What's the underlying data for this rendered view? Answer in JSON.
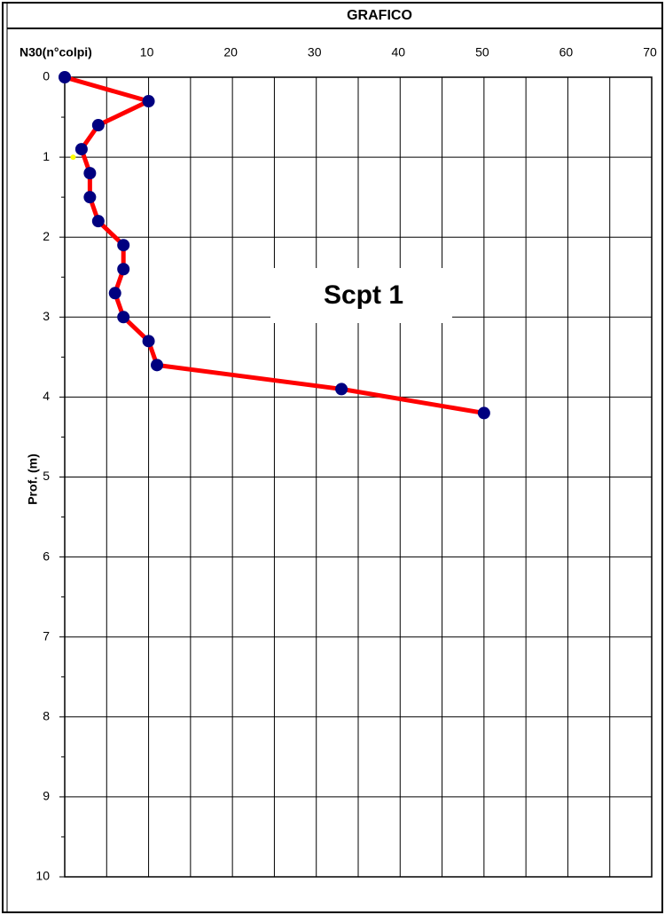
{
  "chart_data": {
    "type": "line",
    "title": "GRAFICO",
    "xlabel": "N30(n°colpi)",
    "ylabel": "Prof. (m)",
    "annotation": "Scpt 1",
    "xlim": [
      0,
      70
    ],
    "ylim": [
      0,
      10
    ],
    "y_inverted": true,
    "grid": true,
    "xticks": [
      10,
      20,
      30,
      40,
      50,
      60,
      70
    ],
    "xminor_ticks": [
      5,
      15,
      25,
      35,
      45,
      55,
      65
    ],
    "yticks": [
      0,
      1,
      2,
      3,
      4,
      5,
      6,
      7,
      8,
      9,
      10
    ],
    "yminor_ticks": [
      0.5,
      1.5,
      2.5,
      3.5,
      4.5,
      5.5,
      6.5,
      7.5,
      8.5,
      9.5
    ],
    "series": [
      {
        "color": "#ff0000",
        "marker_color": "#000080",
        "x": [
          0,
          10,
          4,
          2,
          3,
          3,
          4,
          7,
          7,
          6,
          7,
          10,
          11,
          33,
          50
        ],
        "values": [
          0,
          0.3,
          0.6,
          0.9,
          1.2,
          1.5,
          1.8,
          2.1,
          2.4,
          2.7,
          3.0,
          3.3,
          3.6,
          3.9,
          4.2
        ]
      },
      {
        "color": "#ffff00",
        "x": [
          1
        ],
        "values": [
          1
        ]
      }
    ]
  }
}
